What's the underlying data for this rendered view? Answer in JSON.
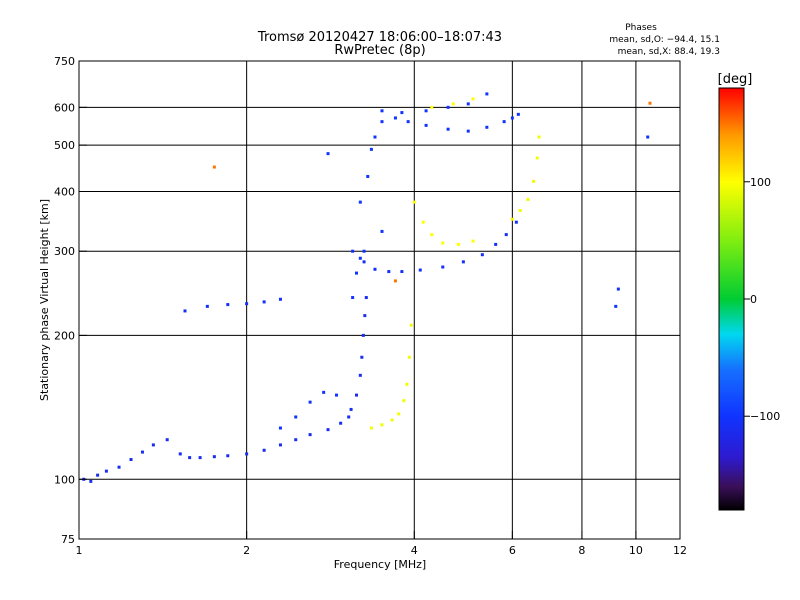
{
  "title": "Tromsø 20120427 18:06:00–18:07:43",
  "subtitle": "RwPretec (8p)",
  "stats": {
    "heading": "Phases",
    "line1": "mean, sd,O: −94.4, 15.1",
    "line2": "mean, sd,X:  88.4, 19.3"
  },
  "colorbar": {
    "label": "[deg]",
    "range": [
      -180,
      180
    ],
    "ticks": [
      {
        "value": 100,
        "label": "100"
      },
      {
        "value": 0,
        "label": "0"
      },
      {
        "value": -100,
        "label": "−100"
      }
    ],
    "gradient": [
      {
        "v": -180,
        "color": "#000000"
      },
      {
        "v": -160,
        "color": "#3a0f5a"
      },
      {
        "v": -135,
        "color": "#2e1ad0"
      },
      {
        "v": -100,
        "color": "#1034ff"
      },
      {
        "v": -60,
        "color": "#1670ff"
      },
      {
        "v": -30,
        "color": "#00d8f0"
      },
      {
        "v": 0,
        "color": "#00cc33"
      },
      {
        "v": 50,
        "color": "#80ee10"
      },
      {
        "v": 100,
        "color": "#ffff00"
      },
      {
        "v": 140,
        "color": "#ff9900"
      },
      {
        "v": 180,
        "color": "#ff0000"
      }
    ]
  },
  "chart_data": {
    "type": "scatter",
    "title": "Tromsø 20120427 18:06:00–18:07:43",
    "subtitle": "RwPretec (8p)",
    "xlabel": "Frequency [MHz]",
    "ylabel": "Stationary phase Virtual Height [km]",
    "xscale": "log",
    "yscale": "log",
    "xlim": [
      1,
      12
    ],
    "ylim": [
      75,
      750
    ],
    "xticks": [
      {
        "value": 1,
        "label": "1"
      },
      {
        "value": 2,
        "label": "2"
      },
      {
        "value": 4,
        "label": "4"
      },
      {
        "value": 6,
        "label": "6"
      },
      {
        "value": 8,
        "label": "8"
      },
      {
        "value": 10,
        "label": "10"
      },
      {
        "value": 12,
        "label": "12"
      }
    ],
    "yticks": [
      {
        "value": 75,
        "label": "75"
      },
      {
        "value": 100,
        "label": "100"
      },
      {
        "value": 200,
        "label": "200"
      },
      {
        "value": 300,
        "label": "300"
      },
      {
        "value": 400,
        "label": "400"
      },
      {
        "value": 500,
        "label": "500"
      },
      {
        "value": 600,
        "label": "600"
      },
      {
        "value": 750,
        "label": "750"
      }
    ],
    "xgrid": [
      2,
      4,
      6,
      8,
      10
    ],
    "ygrid": [
      100,
      200,
      300,
      400,
      500,
      600
    ],
    "color_by": "phase (deg)",
    "series": [
      {
        "phase": -110,
        "points": [
          [
            1.02,
            100
          ],
          [
            1.05,
            99
          ],
          [
            1.08,
            102
          ],
          [
            1.12,
            104
          ],
          [
            1.18,
            106
          ],
          [
            1.24,
            110
          ],
          [
            1.3,
            114
          ],
          [
            1.36,
            118
          ],
          [
            1.44,
            121
          ],
          [
            1.52,
            113
          ],
          [
            1.58,
            111
          ],
          [
            1.65,
            111
          ],
          [
            1.75,
            111.5
          ],
          [
            1.85,
            112
          ],
          [
            2.0,
            113
          ],
          [
            2.15,
            115
          ],
          [
            2.3,
            118
          ],
          [
            2.45,
            121
          ],
          [
            2.6,
            124
          ],
          [
            2.8,
            127
          ],
          [
            2.95,
            131
          ],
          [
            3.05,
            135
          ]
        ]
      },
      {
        "phase": -100,
        "points": [
          [
            2.3,
            128
          ],
          [
            2.45,
            135
          ],
          [
            2.6,
            145
          ],
          [
            2.75,
            152
          ],
          [
            2.9,
            150
          ]
        ]
      },
      {
        "phase": -110,
        "points": [
          [
            3.08,
            140
          ],
          [
            3.15,
            150
          ],
          [
            3.2,
            165
          ],
          [
            3.22,
            180
          ],
          [
            3.24,
            200
          ],
          [
            3.26,
            220
          ],
          [
            3.28,
            240
          ]
        ]
      },
      {
        "phase": -100,
        "points": [
          [
            3.1,
            240
          ],
          [
            3.15,
            270
          ],
          [
            3.2,
            290
          ],
          [
            3.25,
            300
          ]
        ]
      },
      {
        "phase": 95,
        "points": [
          [
            3.35,
            128
          ],
          [
            3.5,
            130
          ],
          [
            3.65,
            133
          ],
          [
            3.75,
            137
          ],
          [
            3.83,
            146
          ],
          [
            3.88,
            158
          ],
          [
            3.92,
            180
          ],
          [
            3.95,
            210
          ]
        ]
      },
      {
        "phase": -105,
        "points": [
          [
            1.55,
            225
          ],
          [
            1.7,
            230
          ],
          [
            1.85,
            232
          ],
          [
            2.0,
            233
          ],
          [
            2.15,
            235
          ],
          [
            2.3,
            238
          ]
        ]
      },
      {
        "phase": -105,
        "points": [
          [
            3.1,
            300
          ],
          [
            3.25,
            285
          ],
          [
            3.4,
            275
          ],
          [
            3.6,
            272
          ],
          [
            3.8,
            272
          ],
          [
            4.1,
            274
          ],
          [
            4.5,
            278
          ],
          [
            4.9,
            285
          ],
          [
            5.3,
            295
          ],
          [
            5.6,
            310
          ],
          [
            5.85,
            325
          ],
          [
            6.1,
            345
          ]
        ]
      },
      {
        "phase": -100,
        "points": [
          [
            3.2,
            380
          ],
          [
            3.3,
            430
          ],
          [
            3.35,
            490
          ],
          [
            3.4,
            520
          ],
          [
            3.5,
            560
          ],
          [
            3.7,
            570
          ],
          [
            3.9,
            560
          ],
          [
            4.2,
            550
          ],
          [
            4.6,
            540
          ],
          [
            5.0,
            535
          ],
          [
            5.4,
            545
          ],
          [
            5.8,
            560
          ],
          [
            6.0,
            570
          ],
          [
            6.15,
            580
          ]
        ]
      },
      {
        "phase": -100,
        "points": [
          [
            3.5,
            590
          ],
          [
            3.8,
            585
          ],
          [
            4.2,
            590
          ],
          [
            4.6,
            600
          ],
          [
            5.0,
            610
          ],
          [
            5.4,
            640
          ]
        ]
      },
      {
        "phase": 100,
        "points": [
          [
            4.0,
            380
          ],
          [
            4.15,
            345
          ],
          [
            4.3,
            325
          ],
          [
            4.5,
            312
          ],
          [
            4.8,
            310
          ],
          [
            5.1,
            315
          ]
        ]
      },
      {
        "phase": 95,
        "points": [
          [
            6.0,
            350
          ],
          [
            6.2,
            365
          ],
          [
            6.4,
            385
          ],
          [
            6.55,
            420
          ],
          [
            6.65,
            470
          ],
          [
            6.7,
            520
          ]
        ]
      },
      {
        "phase": 100,
        "points": [
          [
            4.3,
            600
          ],
          [
            4.7,
            610
          ],
          [
            5.1,
            625
          ]
        ]
      },
      {
        "phase": 150,
        "points": [
          [
            1.75,
            450
          ],
          [
            10.6,
            612
          ],
          [
            3.7,
            260
          ]
        ]
      },
      {
        "phase": -100,
        "points": [
          [
            2.8,
            480
          ],
          [
            3.5,
            330
          ],
          [
            10.5,
            520
          ],
          [
            9.3,
            250
          ],
          [
            9.2,
            230
          ]
        ]
      }
    ]
  }
}
